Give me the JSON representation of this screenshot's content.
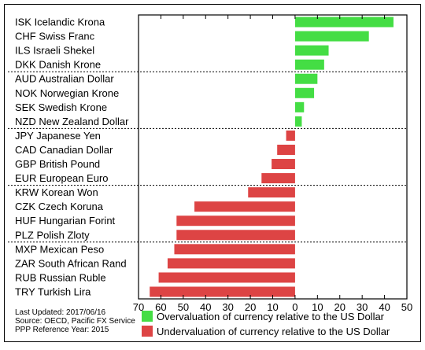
{
  "chart_data": {
    "type": "bar",
    "orientation": "horizontal",
    "categories": [
      "ISK Icelandic Krona",
      "CHF Swiss Franc",
      "ILS Israeli Shekel",
      "DKK Danish Krone",
      "AUD Australian Dollar",
      "NOK Norwegian Krone",
      "SEK Swedish Krone",
      "NZD New Zealand Dollar",
      "JPY Japanese Yen",
      "CAD Canadian Dollar",
      "GBP British Pound",
      "EUR European Euro",
      "KRW Korean Won",
      "CZK Czech Koruna",
      "HUF Hungarian Forint",
      "PLZ Polish Zloty",
      "MXP Mexican Peso",
      "ZAR South African Rand",
      "RUB Russian Ruble",
      "TRY Turkish Lira"
    ],
    "values": [
      44,
      33,
      15,
      13,
      10,
      8.5,
      4,
      3,
      -4,
      -8,
      -10.5,
      -15,
      -21,
      -45,
      -53,
      -53,
      -54,
      -57,
      -61,
      -65
    ],
    "xlim": [
      -70,
      50
    ],
    "xticks": [
      -70,
      -60,
      -50,
      -40,
      -30,
      -20,
      -10,
      0,
      10,
      20,
      30,
      40,
      50
    ],
    "xtick_labels": [
      "70",
      "60",
      "50",
      "40",
      "30",
      "20",
      "10",
      "0",
      "10",
      "20",
      "30",
      "40",
      "50"
    ],
    "group_separators_after": [
      3,
      7,
      11,
      15
    ],
    "title": "",
    "xlabel": "",
    "ylabel": "",
    "grid": false,
    "legend_position": "bottom-right",
    "legend": [
      {
        "label": "Overvaluation of currency relative to the US Dollar",
        "color": "#44dd44"
      },
      {
        "label": "Undervaluation of currency relative to the US Dollar",
        "color": "#dd4444"
      }
    ],
    "notes": [
      "Last Updated: 2017/06/16",
      "Source: OECD, Pacific FX Service",
      "PPP Reference Year: 2015"
    ],
    "colors": {
      "positive": "#44dd44",
      "negative": "#dd4444"
    }
  }
}
